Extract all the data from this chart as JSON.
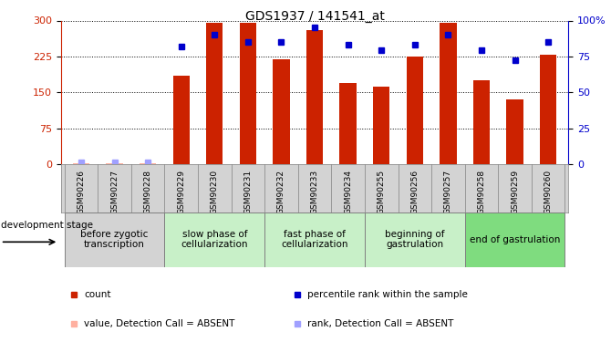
{
  "title": "GDS1937 / 141541_at",
  "samples": [
    "GSM90226",
    "GSM90227",
    "GSM90228",
    "GSM90229",
    "GSM90230",
    "GSM90231",
    "GSM90232",
    "GSM90233",
    "GSM90234",
    "GSM90255",
    "GSM90256",
    "GSM90257",
    "GSM90258",
    "GSM90259",
    "GSM90260"
  ],
  "bar_values": [
    2,
    2,
    2,
    185,
    295,
    295,
    220,
    280,
    170,
    162,
    225,
    295,
    175,
    135,
    228
  ],
  "rank_values": [
    3,
    3,
    3,
    245,
    270,
    255,
    255,
    285,
    250,
    238,
    250,
    270,
    238,
    218,
    255
  ],
  "absent_bars": [
    true,
    true,
    true,
    false,
    false,
    false,
    false,
    false,
    false,
    false,
    false,
    false,
    false,
    false,
    false
  ],
  "absent_ranks": [
    true,
    true,
    true,
    false,
    false,
    false,
    false,
    false,
    false,
    false,
    false,
    false,
    false,
    false,
    false
  ],
  "bar_color": "#cc2200",
  "rank_color": "#0000cc",
  "absent_bar_color": "#ffb0a0",
  "absent_rank_color": "#a0a0ff",
  "ylim_left": [
    0,
    300
  ],
  "ylim_right": [
    0,
    100
  ],
  "yticks_left": [
    0,
    75,
    150,
    225,
    300
  ],
  "yticks_right": [
    0,
    25,
    50,
    75,
    100
  ],
  "stages": [
    {
      "label": "before zygotic\ntranscription",
      "start": 0,
      "end": 3,
      "color": "#d3d3d3"
    },
    {
      "label": "slow phase of\ncellularization",
      "start": 3,
      "end": 6,
      "color": "#c8f0c8"
    },
    {
      "label": "fast phase of\ncellularization",
      "start": 6,
      "end": 9,
      "color": "#c8f0c8"
    },
    {
      "label": "beginning of\ngastrulation",
      "start": 9,
      "end": 12,
      "color": "#c8f0c8"
    },
    {
      "label": "end of gastrulation",
      "start": 12,
      "end": 15,
      "color": "#7fdc7f"
    }
  ],
  "dev_stage_label": "development stage",
  "legend_entries": [
    {
      "label": "count",
      "color": "#cc2200"
    },
    {
      "label": "percentile rank within the sample",
      "color": "#0000cc"
    },
    {
      "label": "value, Detection Call = ABSENT",
      "color": "#ffb0a0"
    },
    {
      "label": "rank, Detection Call = ABSENT",
      "color": "#a0a0ff"
    }
  ]
}
